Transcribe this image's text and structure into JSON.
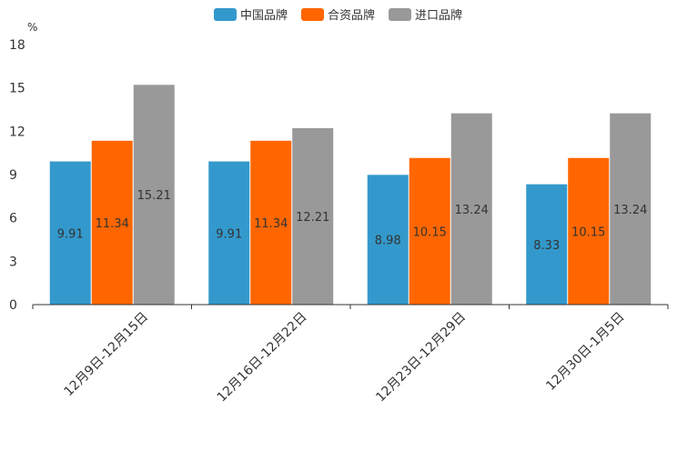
{
  "chart_data": {
    "type": "bar",
    "title": "",
    "ylabel": "%",
    "xlabel": "",
    "ylim": [
      0,
      18
    ],
    "yticks": [
      0,
      3,
      6,
      9,
      12,
      15,
      18
    ],
    "categories": [
      "12月9日-12月15日",
      "12月16日-12月22日",
      "12月23日-12月29日",
      "12月30日-1月5日"
    ],
    "series": [
      {
        "name": "中国品牌",
        "color": "#3399cc",
        "values": [
          9.91,
          9.91,
          8.98,
          8.33
        ]
      },
      {
        "name": "合资品牌",
        "color": "#ff6600",
        "values": [
          11.34,
          11.34,
          10.15,
          10.15
        ]
      },
      {
        "name": "进口品牌",
        "color": "#999999",
        "values": [
          15.21,
          12.21,
          13.24,
          13.24
        ]
      }
    ],
    "legend_position": "top-center",
    "grid": false
  }
}
